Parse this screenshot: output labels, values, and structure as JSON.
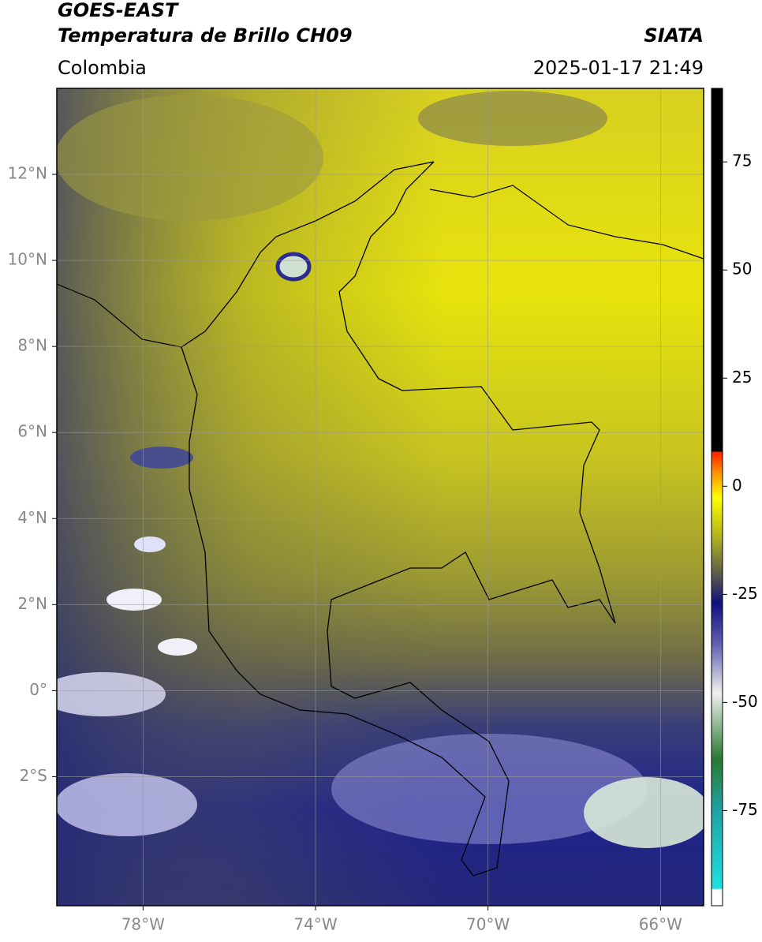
{
  "header": {
    "title": "GOES-EAST",
    "subtitle": "Temperatura de Brillo CH09",
    "region": "Colombia",
    "source": "SIATA",
    "datetime": "2025-01-17 21:49"
  },
  "map": {
    "xlim": [
      -80,
      -65
    ],
    "ylim": [
      -5,
      14
    ],
    "xticks": [
      {
        "value": -78,
        "label": "78°W"
      },
      {
        "value": -74,
        "label": "74°W"
      },
      {
        "value": -70,
        "label": "70°W"
      },
      {
        "value": -66,
        "label": "66°W"
      }
    ],
    "yticks": [
      {
        "value": 12,
        "label": "12°N"
      },
      {
        "value": 10,
        "label": "10°N"
      },
      {
        "value": 8,
        "label": "8°N"
      },
      {
        "value": 6,
        "label": "6°N"
      },
      {
        "value": 4,
        "label": "4°N"
      },
      {
        "value": 2,
        "label": "2°N"
      },
      {
        "value": 0,
        "label": "0°"
      },
      {
        "value": -2,
        "label": "2°S"
      }
    ],
    "grid": true
  },
  "colorbar": {
    "lim": [
      -97,
      92
    ],
    "ticks": [
      75,
      50,
      25,
      0,
      -25,
      -50,
      -75
    ]
  }
}
